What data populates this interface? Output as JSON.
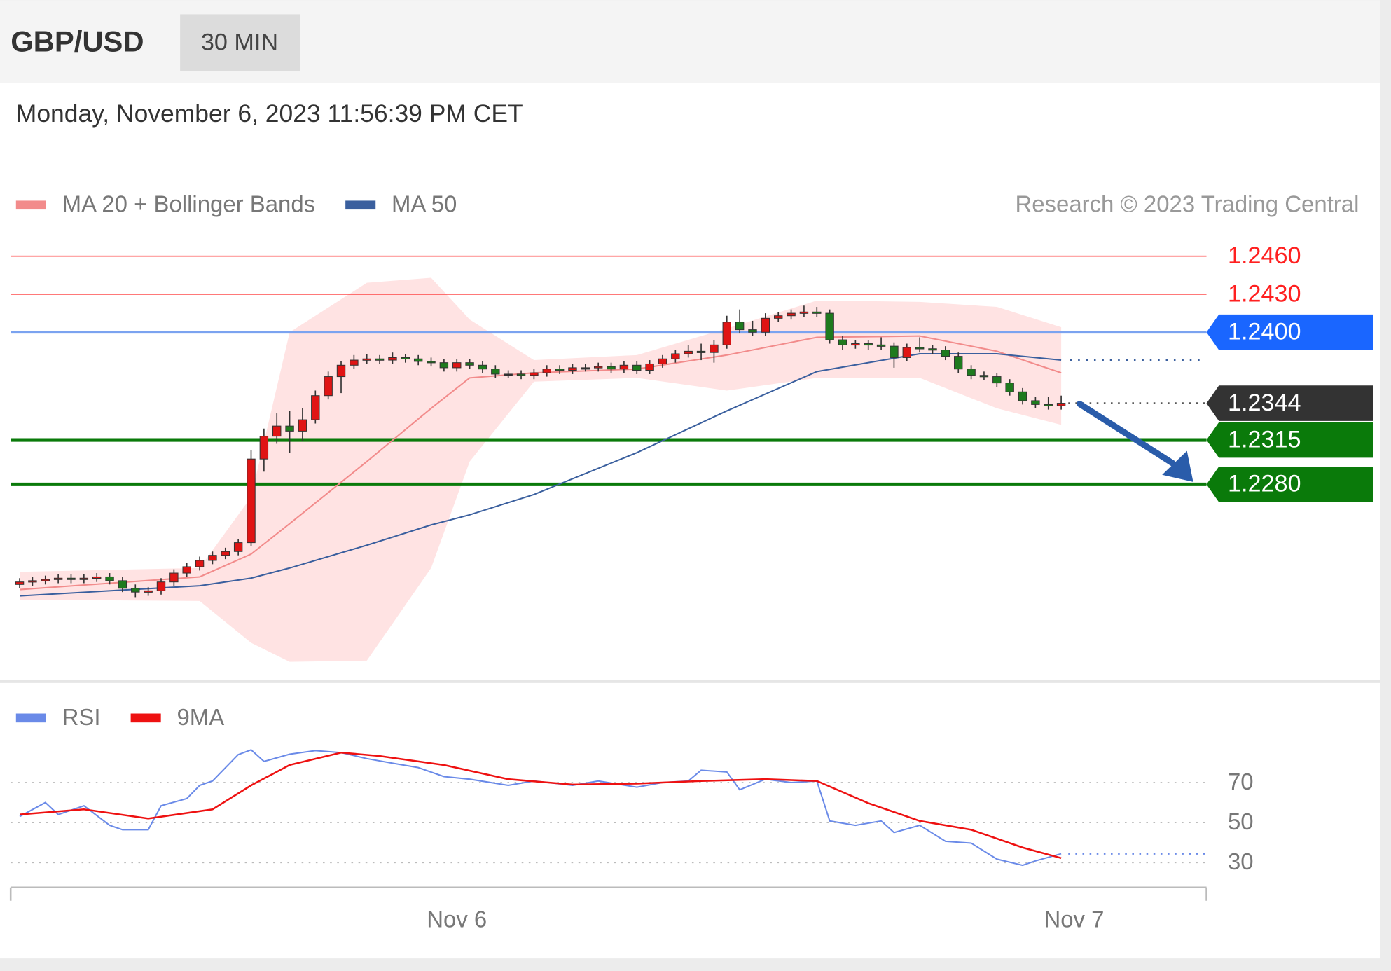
{
  "header": {
    "symbol": "GBP/USD",
    "interval": "30 MIN"
  },
  "timestamp": "Monday, November 6, 2023 11:56:39 PM CET",
  "chart_data": [
    {
      "type": "candlestick",
      "credit": "Research © 2023 Trading Central",
      "up_color": "#e01414",
      "down_color": "#1e7a1e",
      "xlim": [
        -0.7,
        92.3
      ],
      "ylim": [
        1.213,
        1.2473
      ],
      "candles": [
        [
          1.2201,
          1.2206,
          1.2198,
          1.2203
        ],
        [
          1.2203,
          1.2207,
          1.22,
          1.2204
        ],
        [
          1.2204,
          1.2208,
          1.2201,
          1.2205
        ],
        [
          1.2205,
          1.2209,
          1.2202,
          1.2206
        ],
        [
          1.2206,
          1.2209,
          1.2202,
          1.2205
        ],
        [
          1.2205,
          1.2209,
          1.2202,
          1.2206
        ],
        [
          1.2206,
          1.221,
          1.2203,
          1.2207
        ],
        [
          1.2207,
          1.221,
          1.2201,
          1.2204
        ],
        [
          1.2204,
          1.2207,
          1.2195,
          1.2198
        ],
        [
          1.2198,
          1.2201,
          1.2191,
          1.2195
        ],
        [
          1.2195,
          1.2199,
          1.2192,
          1.2196
        ],
        [
          1.2196,
          1.2206,
          1.2193,
          1.2203
        ],
        [
          1.2203,
          1.2213,
          1.22,
          1.221
        ],
        [
          1.221,
          1.2218,
          1.2207,
          1.2215
        ],
        [
          1.2215,
          1.2223,
          1.2212,
          1.222
        ],
        [
          1.222,
          1.2227,
          1.2217,
          1.2224
        ],
        [
          1.2224,
          1.223,
          1.2221,
          1.2227
        ],
        [
          1.2227,
          1.2237,
          1.2224,
          1.2234
        ],
        [
          1.2234,
          1.2307,
          1.2231,
          1.23
        ],
        [
          1.23,
          1.2324,
          1.229,
          1.2318
        ],
        [
          1.2318,
          1.2336,
          1.2312,
          1.2326
        ],
        [
          1.2326,
          1.2338,
          1.2305,
          1.2322
        ],
        [
          1.2322,
          1.234,
          1.2314,
          1.2331
        ],
        [
          1.2331,
          1.2354,
          1.2328,
          1.235
        ],
        [
          1.235,
          1.2369,
          1.2347,
          1.2365
        ],
        [
          1.2365,
          1.2377,
          1.2352,
          1.2374
        ],
        [
          1.2374,
          1.2382,
          1.2371,
          1.2378
        ],
        [
          1.2378,
          1.2383,
          1.2375,
          1.2379
        ],
        [
          1.2379,
          1.2382,
          1.2375,
          1.2378
        ],
        [
          1.2378,
          1.2384,
          1.2375,
          1.238
        ],
        [
          1.238,
          1.2383,
          1.2376,
          1.2379
        ],
        [
          1.2379,
          1.2382,
          1.2374,
          1.2377
        ],
        [
          1.2377,
          1.238,
          1.2373,
          1.2376
        ],
        [
          1.2376,
          1.2379,
          1.2369,
          1.2372
        ],
        [
          1.2372,
          1.2379,
          1.2369,
          1.2376
        ],
        [
          1.2376,
          1.2379,
          1.2371,
          1.2374
        ],
        [
          1.2374,
          1.2377,
          1.2368,
          1.2371
        ],
        [
          1.2371,
          1.2374,
          1.2364,
          1.2367
        ],
        [
          1.2367,
          1.237,
          1.2364,
          1.2367
        ],
        [
          1.2367,
          1.237,
          1.2363,
          1.2366
        ],
        [
          1.2366,
          1.2371,
          1.2363,
          1.2368
        ],
        [
          1.2368,
          1.2374,
          1.2365,
          1.2371
        ],
        [
          1.2371,
          1.2374,
          1.2367,
          1.237
        ],
        [
          1.237,
          1.2375,
          1.2367,
          1.2372
        ],
        [
          1.2372,
          1.2375,
          1.2369,
          1.2372
        ],
        [
          1.2372,
          1.2376,
          1.2369,
          1.2373
        ],
        [
          1.2373,
          1.2376,
          1.2368,
          1.2371
        ],
        [
          1.2371,
          1.2377,
          1.2368,
          1.2374
        ],
        [
          1.2374,
          1.2377,
          1.2367,
          1.237
        ],
        [
          1.237,
          1.2378,
          1.2367,
          1.2375
        ],
        [
          1.2375,
          1.2382,
          1.2372,
          1.2379
        ],
        [
          1.2379,
          1.2386,
          1.2376,
          1.2383
        ],
        [
          1.2383,
          1.239,
          1.238,
          1.2385
        ],
        [
          1.2385,
          1.2391,
          1.2378,
          1.2384
        ],
        [
          1.2384,
          1.2394,
          1.2376,
          1.239
        ],
        [
          1.239,
          1.2413,
          1.2387,
          1.2408
        ],
        [
          1.2408,
          1.2418,
          1.2399,
          1.2402
        ],
        [
          1.2402,
          1.2409,
          1.2397,
          1.24
        ],
        [
          1.24,
          1.2415,
          1.2397,
          1.2411
        ],
        [
          1.2411,
          1.2416,
          1.2408,
          1.2413
        ],
        [
          1.2413,
          1.2418,
          1.241,
          1.2415
        ],
        [
          1.2415,
          1.2421,
          1.2412,
          1.2416
        ],
        [
          1.2416,
          1.242,
          1.2412,
          1.2415
        ],
        [
          1.2415,
          1.2418,
          1.2391,
          1.2394
        ],
        [
          1.2394,
          1.2397,
          1.2386,
          1.239
        ],
        [
          1.239,
          1.2394,
          1.2387,
          1.2391
        ],
        [
          1.2391,
          1.2394,
          1.2386,
          1.239
        ],
        [
          1.239,
          1.2396,
          1.2386,
          1.2389
        ],
        [
          1.2389,
          1.2392,
          1.2372,
          1.238
        ],
        [
          1.238,
          1.2391,
          1.2377,
          1.2388
        ],
        [
          1.2388,
          1.2396,
          1.2384,
          1.2387
        ],
        [
          1.2387,
          1.239,
          1.2383,
          1.2386
        ],
        [
          1.2386,
          1.2389,
          1.2378,
          1.2381
        ],
        [
          1.2381,
          1.2384,
          1.2368,
          1.2371
        ],
        [
          1.2371,
          1.2374,
          1.2363,
          1.2366
        ],
        [
          1.2366,
          1.2369,
          1.2362,
          1.2365
        ],
        [
          1.2365,
          1.2368,
          1.2357,
          1.236
        ],
        [
          1.236,
          1.2363,
          1.235,
          1.2353
        ],
        [
          1.2353,
          1.2356,
          1.2343,
          1.2346
        ],
        [
          1.2346,
          1.2349,
          1.234,
          1.2343
        ],
        [
          1.2343,
          1.2349,
          1.2339,
          1.2342
        ],
        [
          1.2342,
          1.235,
          1.2339,
          1.2344
        ]
      ],
      "x": [
        0,
        14,
        18,
        21,
        27,
        32,
        35,
        40,
        48,
        55,
        62,
        70,
        76,
        81
      ],
      "series": [
        {
          "name": "MA 20 + Bollinger Bands",
          "color": "#f28b8b",
          "band_color": "#ffe3e3",
          "values": [
            1.2197,
            1.2207,
            1.2225,
            1.2249,
            1.2298,
            1.234,
            1.2364,
            1.2368,
            1.2371,
            1.2382,
            1.2396,
            1.2397,
            1.2385,
            1.2368
          ],
          "band_upper": [
            1.2211,
            1.2214,
            1.227,
            1.24,
            1.2439,
            1.2443,
            1.241,
            1.2378,
            1.2382,
            1.2403,
            1.2425,
            1.2424,
            1.242,
            1.2404
          ],
          "band_lower": [
            1.2189,
            1.2188,
            1.2155,
            1.214,
            1.2141,
            1.2214,
            1.2298,
            1.2361,
            1.2364,
            1.2354,
            1.2364,
            1.2364,
            1.234,
            1.2327
          ]
        },
        {
          "name": "MA 50",
          "color": "#3a5f9e",
          "values": [
            1.2192,
            1.22,
            1.2206,
            1.2214,
            1.2232,
            1.2248,
            1.2256,
            1.2272,
            1.2305,
            1.2338,
            1.2369,
            1.2383,
            1.2383,
            1.2378
          ]
        }
      ],
      "levels": [
        {
          "value": 1.246,
          "label": "1.2460",
          "color": "#ff2020",
          "style": "text"
        },
        {
          "value": 1.243,
          "label": "1.2430",
          "color": "#ff2020",
          "style": "text"
        },
        {
          "value": 1.24,
          "label": "1.2400",
          "color": "#1a66ff",
          "style": "tag"
        },
        {
          "value": 1.2344,
          "label": "1.2344",
          "color": "#333333",
          "style": "current"
        },
        {
          "value": 1.2315,
          "label": "1.2315",
          "color": "#0a7a0a",
          "style": "tag"
        },
        {
          "value": 1.228,
          "label": "1.2280",
          "color": "#0a7a0a",
          "style": "tag"
        }
      ]
    },
    {
      "type": "line",
      "xlim": [
        -0.7,
        92.3
      ],
      "ylim": [
        17.5,
        93
      ],
      "yticks": [
        30,
        50,
        70
      ],
      "xticks": [
        {
          "value": 34,
          "label": "Nov 6"
        },
        {
          "value": 82,
          "label": "Nov 7"
        }
      ],
      "series": [
        {
          "name": "RSI",
          "color": "#6a8ae8",
          "x": [
            0,
            2,
            3,
            5,
            7,
            8,
            10,
            11,
            13,
            14,
            15,
            17,
            18,
            19,
            21,
            23,
            25,
            27,
            29,
            31,
            33,
            35,
            38,
            40,
            43,
            45,
            48,
            50,
            52,
            53,
            55,
            56,
            58,
            60,
            62,
            63,
            65,
            67,
            68,
            70,
            72,
            74,
            76,
            78,
            79,
            81
          ],
          "values": [
            53,
            60,
            54,
            58.4,
            48.6,
            46.4,
            46.4,
            58.4,
            62,
            68.6,
            70.8,
            84,
            86.4,
            80.6,
            84.2,
            86,
            85,
            82,
            79.7,
            77.5,
            73,
            71.7,
            68.6,
            70.8,
            68.6,
            70.8,
            67.7,
            70,
            70.8,
            76.2,
            75.3,
            66.4,
            71.7,
            70,
            70.8,
            50.8,
            48.6,
            50.8,
            45,
            48.6,
            40.6,
            39.7,
            31.7,
            28.6,
            30.8,
            34.4
          ]
        },
        {
          "name": "9MA",
          "color": "#ee1111",
          "x": [
            0,
            5,
            10,
            15,
            18,
            21,
            25,
            28,
            33,
            38,
            43,
            48,
            53,
            58,
            62,
            66,
            70,
            74,
            78,
            81
          ],
          "values": [
            54,
            56.6,
            52,
            56.6,
            68.6,
            78.8,
            85,
            83.3,
            78.8,
            71.7,
            69,
            69.5,
            70.8,
            71.7,
            70.8,
            59.7,
            50.8,
            46.4,
            37.5,
            32.2
          ]
        }
      ]
    }
  ]
}
